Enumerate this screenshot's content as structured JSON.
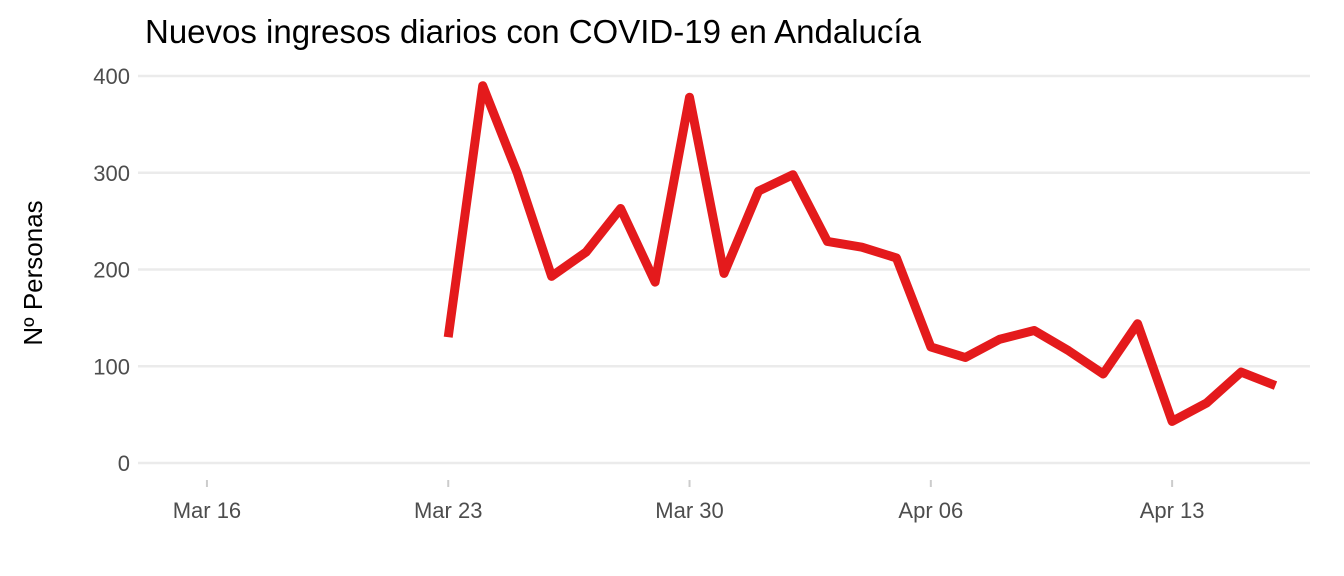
{
  "chart_data": {
    "type": "line",
    "title": "Nuevos ingresos diarios con COVID-19 en Andalucía",
    "xlabel": "",
    "ylabel": "Nº Personas",
    "x_tick_labels": [
      "Mar 16",
      "Mar 23",
      "Mar 30",
      "Apr 06",
      "Apr 13"
    ],
    "x_tick_dates": [
      "2020-03-16",
      "2020-03-23",
      "2020-03-30",
      "2020-04-06",
      "2020-04-13"
    ],
    "y_ticks": [
      0,
      100,
      200,
      300,
      400
    ],
    "xlim": [
      "2020-03-14",
      "2020-04-17"
    ],
    "ylim": [
      -15,
      400
    ],
    "grid": "horizontal",
    "color": "#e41a1c",
    "series": [
      {
        "x": [
          "2020-03-23",
          "2020-03-24",
          "2020-03-25",
          "2020-03-26",
          "2020-03-27",
          "2020-03-28",
          "2020-03-29",
          "2020-03-30",
          "2020-03-31",
          "2020-04-01",
          "2020-04-02",
          "2020-04-03",
          "2020-04-04",
          "2020-04-05",
          "2020-04-06",
          "2020-04-07",
          "2020-04-08",
          "2020-04-09",
          "2020-04-10",
          "2020-04-11",
          "2020-04-12",
          "2020-04-13",
          "2020-04-14",
          "2020-04-15",
          "2020-04-16"
        ],
        "values": [
          130,
          390,
          300,
          193,
          218,
          263,
          187,
          378,
          196,
          281,
          298,
          229,
          223,
          212,
          120,
          109,
          128,
          137,
          116,
          92,
          144,
          43,
          62,
          94,
          80
        ]
      }
    ]
  }
}
